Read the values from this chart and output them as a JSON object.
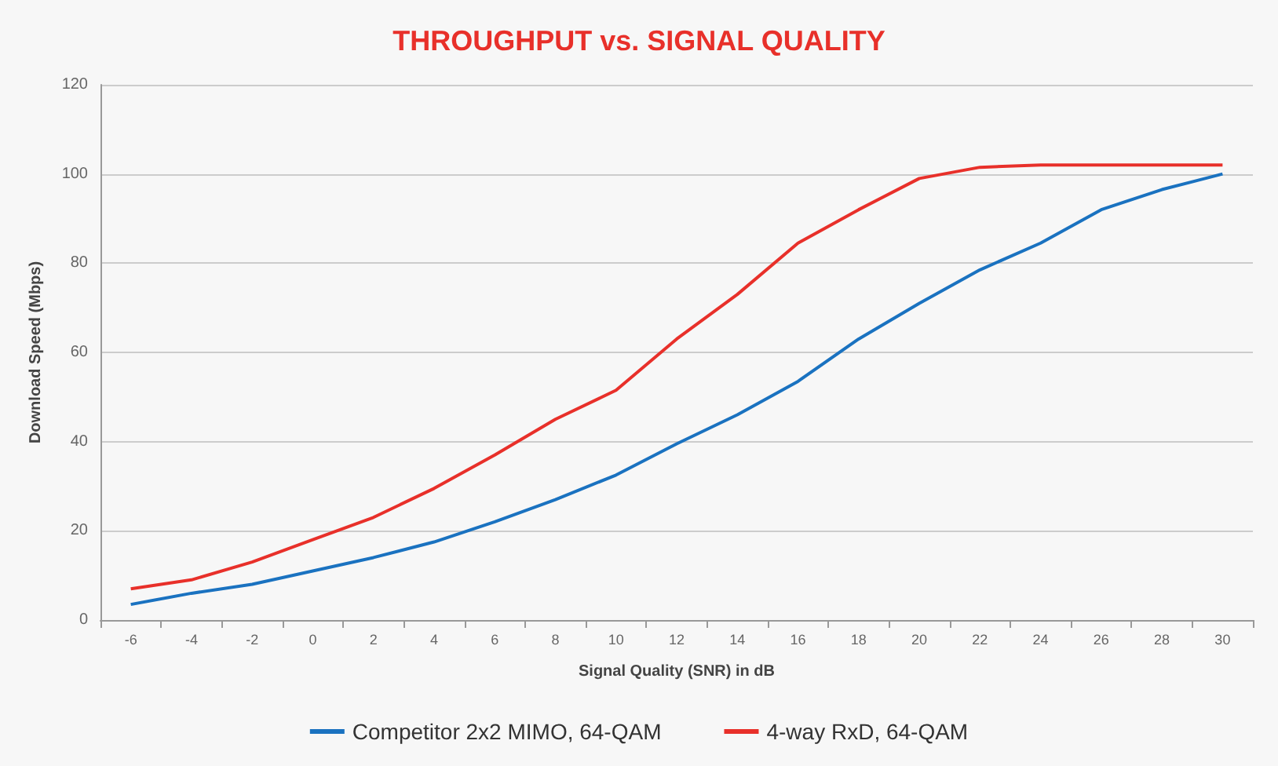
{
  "chart_data": {
    "type": "line",
    "title": "THROUGHPUT vs. SIGNAL QUALITY",
    "xlabel": "Signal Quality (SNR) in dB",
    "ylabel": "Download Speed (Mbps)",
    "x": [
      -6,
      -4,
      -2,
      0,
      2,
      4,
      6,
      8,
      10,
      12,
      14,
      16,
      18,
      20,
      22,
      24,
      26,
      28,
      30
    ],
    "series": [
      {
        "name": "Competitor 2x2 MIMO, 64-QAM",
        "color": "#1a72c0",
        "values": [
          3.5,
          6,
          8,
          11,
          14,
          17.5,
          22,
          27,
          32.5,
          39.5,
          46,
          53.5,
          63,
          71,
          78.5,
          84.5,
          92,
          96.5,
          100
        ]
      },
      {
        "name": "4-way RxD, 64-QAM",
        "color": "#e8302a",
        "values": [
          7,
          9,
          13,
          18,
          23,
          29.5,
          37,
          45,
          51.5,
          63,
          73,
          84.5,
          92,
          99,
          101.5,
          102,
          102,
          102,
          102
        ]
      }
    ],
    "xlim": [
      -7,
      31
    ],
    "xticks": [
      {
        "value": -7,
        "label": null
      },
      -6,
      {
        "value": -5,
        "label": null
      },
      -4,
      {
        "value": -3,
        "label": null
      },
      -2,
      {
        "value": -1,
        "label": null
      },
      0,
      {
        "value": 1,
        "label": null
      },
      2,
      {
        "value": 3,
        "label": null
      },
      4,
      {
        "value": 5,
        "label": null
      },
      6,
      {
        "value": 7,
        "label": null
      },
      8,
      {
        "value": 9,
        "label": null
      },
      10,
      {
        "value": 11,
        "label": null
      },
      12,
      {
        "value": 13,
        "label": null
      },
      14,
      {
        "value": 15,
        "label": null
      },
      16,
      {
        "value": 17,
        "label": null
      },
      18,
      {
        "value": 19,
        "label": null
      },
      20,
      {
        "value": 21,
        "label": null
      },
      22,
      {
        "value": 23,
        "label": null
      },
      24,
      {
        "value": 25,
        "label": null
      },
      26,
      {
        "value": 27,
        "label": null
      },
      28,
      {
        "value": 29,
        "label": null
      },
      30,
      {
        "value": 31,
        "label": null
      }
    ],
    "ylim": [
      0,
      120
    ],
    "yticks": [
      0,
      20,
      40,
      60,
      80,
      100,
      120
    ],
    "grid": "y",
    "legend": "bottom",
    "marker": "none",
    "line_style": "solid"
  }
}
